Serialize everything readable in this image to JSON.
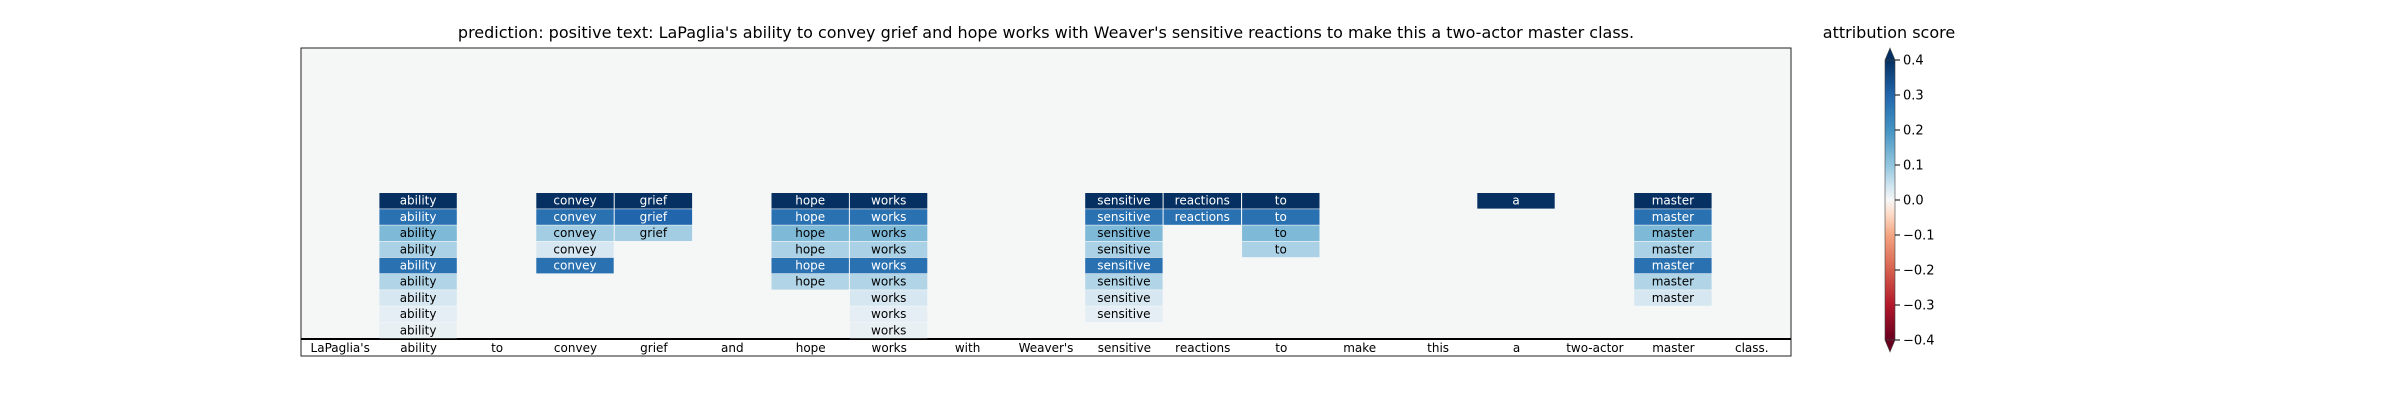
{
  "chart_data": {
    "type": "heatmap",
    "title": "prediction:  positive     text:  LaPaglia's ability to convey grief and hope works with Weaver's sensitive reactions to make this a two-actor master class.",
    "colorbar_title": "attribution score",
    "colorbar_ticks": [
      "0.4",
      "0.3",
      "0.2",
      "0.1",
      "0.0",
      "−0.1",
      "−0.2",
      "−0.3",
      "−0.4"
    ],
    "colorbar_range": [
      -0.4,
      0.4
    ],
    "colorbar_extend": "both",
    "tokens": [
      "LaPaglia's",
      "ability",
      "to",
      "convey",
      "grief",
      "and",
      "hope",
      "works",
      "with",
      "Weaver's",
      "sensitive",
      "reactions",
      "to",
      "make",
      "this",
      "a",
      "two-actor",
      "master",
      "class."
    ],
    "stacked_rows": 9,
    "stacks": [
      {
        "token_index": 1,
        "label": "ability",
        "scores": [
          0.42,
          0.3,
          0.18,
          0.13,
          0.3,
          0.12,
          0.07,
          0.04,
          0.03
        ]
      },
      {
        "token_index": 3,
        "label": "convey",
        "scores": [
          0.42,
          0.3,
          0.14,
          0.07,
          0.3
        ]
      },
      {
        "token_index": 4,
        "label": "grief",
        "scores": [
          0.42,
          0.32,
          0.14
        ]
      },
      {
        "token_index": 6,
        "label": "hope",
        "scores": [
          0.42,
          0.3,
          0.18,
          0.13,
          0.3,
          0.12
        ]
      },
      {
        "token_index": 7,
        "label": "works",
        "scores": [
          0.42,
          0.3,
          0.18,
          0.13,
          0.3,
          0.12,
          0.07,
          0.04,
          0.03
        ]
      },
      {
        "token_index": 10,
        "label": "sensitive",
        "scores": [
          0.42,
          0.3,
          0.18,
          0.13,
          0.3,
          0.12,
          0.07,
          0.04
        ]
      },
      {
        "token_index": 11,
        "label": "reactions",
        "scores": [
          0.42,
          0.3
        ]
      },
      {
        "token_index": 12,
        "label": "to",
        "scores": [
          0.42,
          0.3,
          0.18,
          0.13
        ]
      },
      {
        "token_index": 15,
        "label": "a",
        "scores": [
          0.42
        ]
      },
      {
        "token_index": 17,
        "label": "master",
        "scores": [
          0.42,
          0.3,
          0.18,
          0.13,
          0.3,
          0.12,
          0.07
        ]
      }
    ],
    "grid": false
  }
}
